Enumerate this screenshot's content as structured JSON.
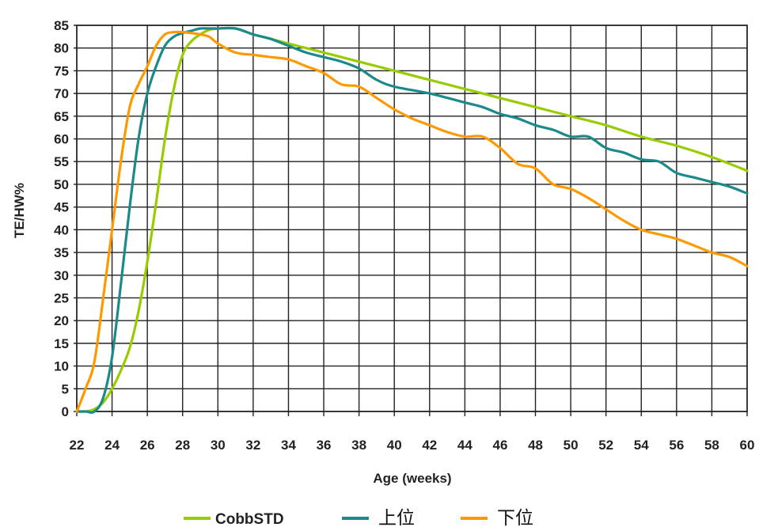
{
  "chart_data": {
    "type": "line",
    "title": "",
    "xlabel": "Age (weeks)",
    "ylabel": "TE/HW%",
    "xlim": [
      22,
      60
    ],
    "ylim": [
      0,
      85
    ],
    "x_ticks": [
      22,
      24,
      26,
      28,
      30,
      32,
      34,
      36,
      38,
      40,
      42,
      44,
      46,
      48,
      50,
      52,
      54,
      56,
      58,
      60
    ],
    "y_ticks": [
      0,
      5,
      10,
      15,
      20,
      25,
      30,
      35,
      40,
      45,
      50,
      55,
      60,
      65,
      70,
      75,
      80,
      85
    ],
    "grid": true,
    "legend_position": "bottom",
    "series": [
      {
        "name": "CobbSTD",
        "color": "#99cc00",
        "x": [
          22,
          22.5,
          23,
          23.5,
          24,
          24.5,
          25,
          25.5,
          26,
          26.5,
          27,
          27.5,
          28,
          28.5,
          29,
          29.5,
          30,
          31,
          32,
          33,
          34,
          36,
          38,
          40,
          42,
          44,
          46,
          48,
          50,
          52,
          54,
          56,
          58,
          60
        ],
        "values": [
          0,
          0,
          0.5,
          2,
          5,
          9,
          14,
          22,
          33,
          46,
          60,
          71,
          78.5,
          81.5,
          83,
          84,
          84.3,
          84.3,
          83,
          82,
          81,
          79,
          77,
          75,
          73,
          71,
          69,
          67,
          65,
          63,
          60.5,
          58.5,
          56,
          53
        ]
      },
      {
        "name": "上位",
        "color": "#1a8a8a",
        "x": [
          22,
          22.5,
          23,
          23.5,
          24,
          24.5,
          25,
          25.5,
          26,
          26.5,
          27,
          27.5,
          28,
          28.5,
          29,
          29.5,
          30,
          31,
          32,
          33,
          34,
          35,
          36,
          37,
          38,
          39,
          40,
          42,
          44,
          45,
          46,
          47,
          48,
          49,
          50,
          51,
          52,
          53,
          54,
          55,
          56,
          57,
          58,
          59,
          60
        ],
        "values": [
          0,
          0,
          0,
          3,
          12,
          28,
          45,
          60,
          70,
          76,
          80.5,
          82.5,
          83.3,
          83.8,
          84.3,
          84.3,
          84.3,
          84.3,
          83,
          82,
          80.5,
          79,
          78,
          77,
          75.5,
          73,
          71.5,
          70,
          68,
          67,
          65.5,
          64.5,
          63,
          62,
          60.5,
          60.5,
          58,
          57,
          55.5,
          55,
          52.5,
          51.5,
          50.5,
          49.5,
          48
        ]
      },
      {
        "name": "下位",
        "color": "#ff9900",
        "x": [
          22,
          22.5,
          23,
          23.5,
          24,
          24.5,
          25,
          25.5,
          26,
          26.5,
          27,
          27.5,
          28,
          28.5,
          29,
          29.5,
          30,
          31,
          32,
          33,
          34,
          35,
          36,
          37,
          38,
          39,
          40,
          41,
          42,
          43,
          44,
          45,
          46,
          47,
          48,
          49,
          50,
          51,
          52,
          53,
          54,
          55,
          56,
          57,
          58,
          59,
          60
        ],
        "values": [
          0,
          5,
          11,
          25,
          40,
          55,
          67,
          72,
          76,
          80.5,
          83,
          83.5,
          83.5,
          83.3,
          83,
          82.5,
          81,
          79,
          78.5,
          78,
          77.5,
          76,
          74.5,
          72,
          71.5,
          69,
          66.5,
          64.5,
          63,
          61.5,
          60.5,
          60.5,
          58,
          54.5,
          53.5,
          50,
          49,
          47,
          44.5,
          42,
          40,
          39,
          38,
          36.5,
          35,
          34,
          32
        ]
      }
    ]
  }
}
